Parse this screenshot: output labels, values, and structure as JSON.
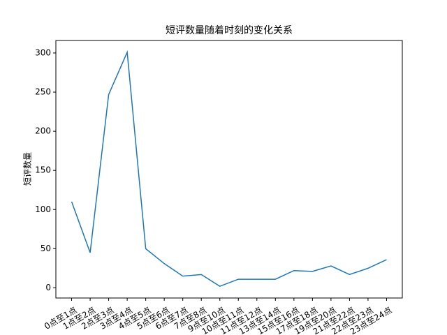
{
  "chart_data": {
    "type": "line",
    "title": "短评数量随着时刻的变化关系",
    "ylabel": "短评数量",
    "categories": [
      "0点至1点",
      "1点至2点",
      "2点至3点",
      "3点至4点",
      "4点至5点",
      "5点至6点",
      "6点至7点",
      "7点至8点",
      "9点至10点",
      "10点至11点",
      "11点至12点",
      "13点至14点",
      "15点至16点",
      "17点至18点",
      "19点至20点",
      "21点至22点",
      "22点至23点",
      "23点至24点"
    ],
    "values": [
      110,
      45,
      247,
      301,
      50,
      31,
      15,
      17,
      2,
      11,
      11,
      11,
      22,
      21,
      28,
      17,
      25,
      36
    ],
    "color": "#1f77b4",
    "ylim": [
      -13,
      316
    ],
    "yticks": [
      0,
      50,
      100,
      150,
      200,
      250,
      300
    ],
    "grid": false
  }
}
